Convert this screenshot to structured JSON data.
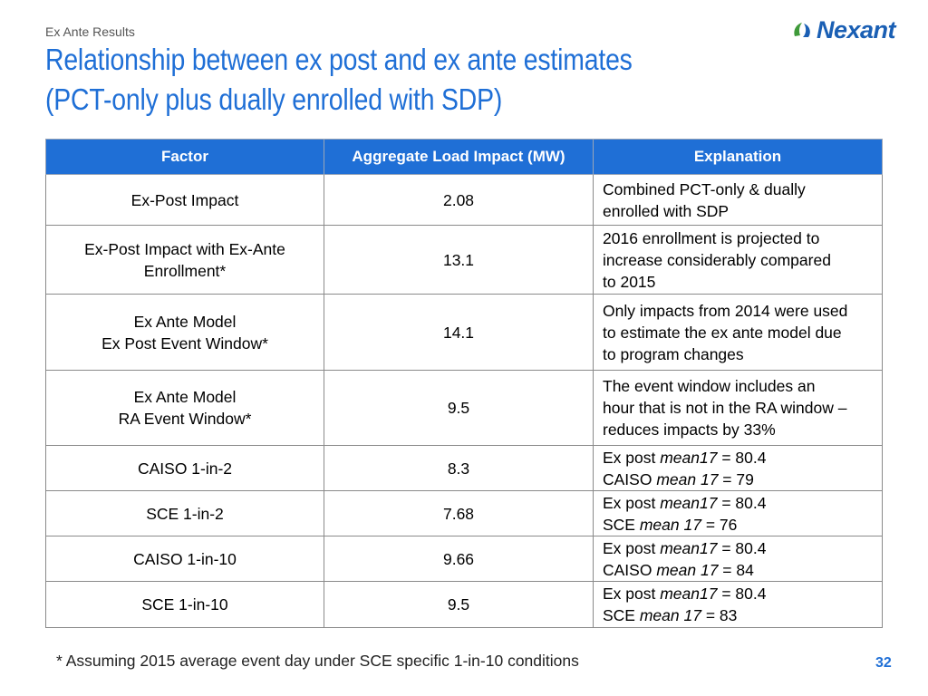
{
  "header": {
    "section_label": "Ex Ante Results",
    "title_line1": "Relationship between ex post and ex ante estimates",
    "title_line2": "(PCT-only plus dually enrolled with SDP)",
    "logo_text": "Nexant"
  },
  "table": {
    "headers": [
      "Factor",
      "Aggregate Load Impact (MW)",
      "Explanation"
    ],
    "rows": [
      {
        "factor": [
          "Ex-Post Impact"
        ],
        "impact": "2.08",
        "explanation": [
          "Combined PCT-only & dually",
          "enrolled with SDP"
        ],
        "height": 56
      },
      {
        "factor": [
          "Ex-Post Impact with Ex-Ante",
          "Enrollment*"
        ],
        "impact": "13.1",
        "explanation": [
          "2016 enrollment is projected to",
          "increase considerably compared",
          "to 2015"
        ],
        "height": 76
      },
      {
        "factor": [
          "Ex Ante Model",
          "Ex Post Event Window*"
        ],
        "impact": "14.1",
        "explanation": [
          "Only impacts from 2014 were used",
          "to estimate the ex ante model due",
          "to program changes"
        ],
        "height": 84
      },
      {
        "factor": [
          "Ex Ante Model",
          "RA Event Window*"
        ],
        "impact": "9.5",
        "explanation": [
          "The event window includes an",
          "hour that is not in the RA window –",
          "reduces impacts by 33%"
        ],
        "height": 83
      },
      {
        "factor": [
          "CAISO 1-in-2"
        ],
        "impact": "8.3",
        "explanation_rich": [
          {
            "prefix": "Ex post ",
            "italic": "mean17",
            "suffix": " = 80.4"
          },
          {
            "prefix": "CAISO ",
            "italic": "mean 17",
            "suffix": " = 79"
          }
        ],
        "height": 50
      },
      {
        "factor": [
          "SCE 1-in-2"
        ],
        "impact": "7.68",
        "explanation_rich": [
          {
            "prefix": "Ex post ",
            "italic": "mean17",
            "suffix": " = 80.4"
          },
          {
            "prefix": "SCE ",
            "italic": "mean 17",
            "suffix": " = 76"
          }
        ],
        "height": 50
      },
      {
        "factor": [
          "CAISO 1-in-10"
        ],
        "impact": "9.66",
        "explanation_rich": [
          {
            "prefix": "Ex post ",
            "italic": "mean17",
            "suffix": " = 80.4"
          },
          {
            "prefix": "CAISO ",
            "italic": "mean 17",
            "suffix": " = 84"
          }
        ],
        "height": 50
      },
      {
        "factor": [
          "SCE 1-in-10"
        ],
        "impact": "9.5",
        "explanation_rich": [
          {
            "prefix": "Ex post ",
            "italic": "mean17",
            "suffix": " = 80.4"
          },
          {
            "prefix": "SCE ",
            "italic": "mean 17",
            "suffix": " = 83"
          }
        ],
        "height": 51
      }
    ]
  },
  "footer": {
    "footnote": "* Assuming 2015 average event day under SCE specific 1-in-10 conditions",
    "page_number": "32"
  },
  "colors": {
    "accent": "#1f6fd6",
    "logo": "#1a5fb4"
  }
}
